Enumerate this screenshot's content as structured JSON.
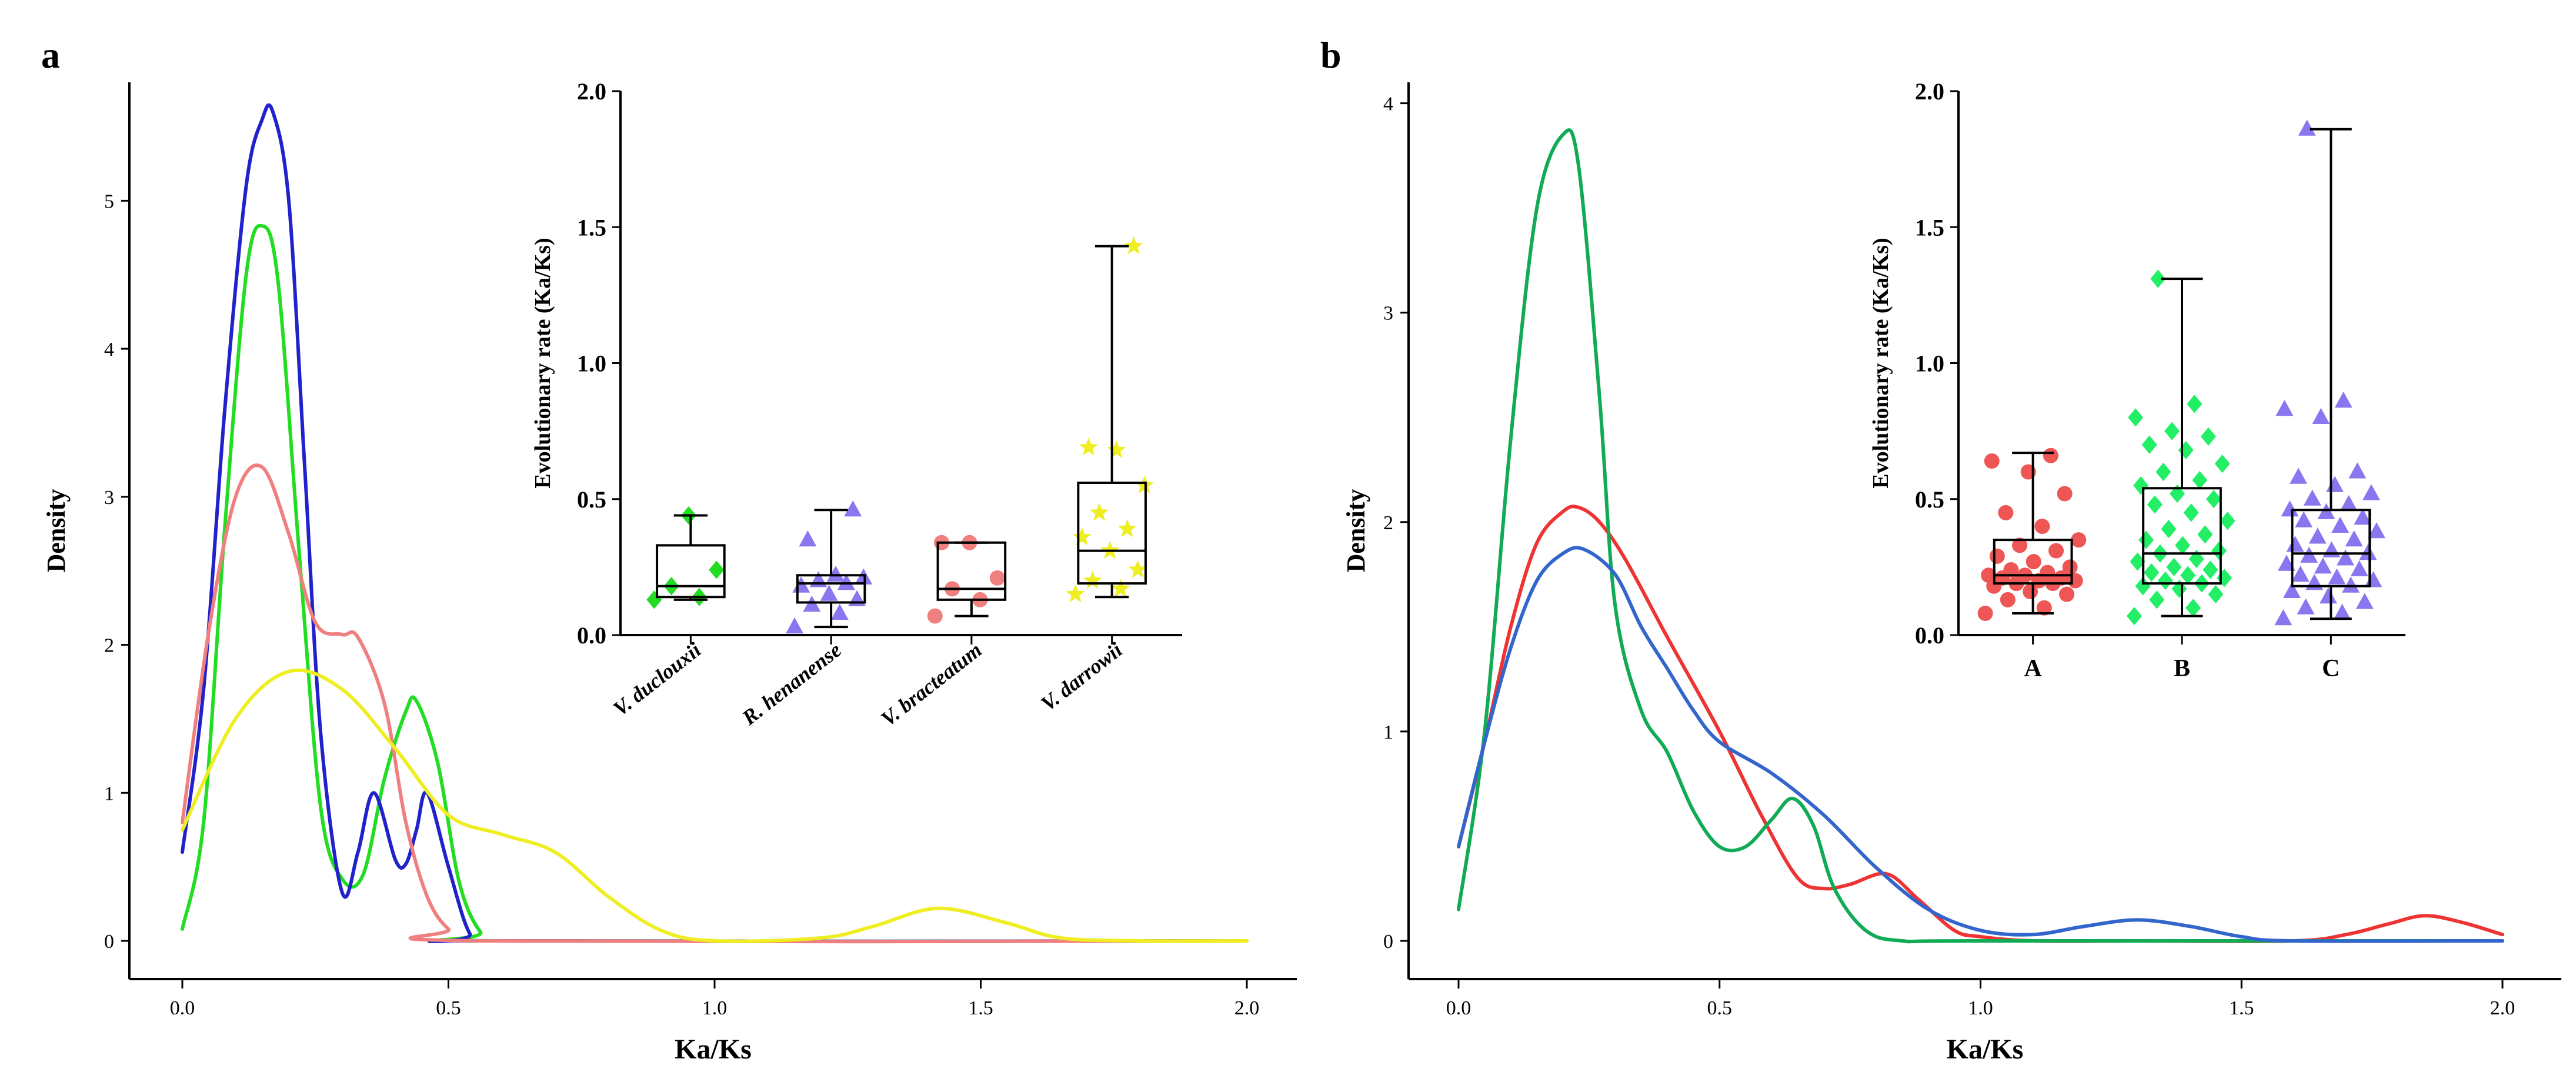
{
  "figure": {
    "panels": [
      {
        "label": "a"
      },
      {
        "label": "b"
      }
    ]
  },
  "chart_data": [
    {
      "panel": "a",
      "type": "line",
      "subtype": "density",
      "title": "",
      "xlabel": "Ka/Ks",
      "ylabel": "Density",
      "xlim": [
        0,
        2
      ],
      "ylim": [
        0,
        5.8
      ],
      "xticks": [
        0.0,
        0.5,
        1.0,
        1.5,
        2.0
      ],
      "xtick_labels": [
        "0.0",
        "0.5",
        "1.0",
        "1.5",
        "2.0"
      ],
      "yticks": [
        0,
        1,
        2,
        3,
        4,
        5
      ],
      "ytick_labels": [
        "0",
        "1",
        "2",
        "3",
        "4",
        "5"
      ],
      "legend": "none",
      "series": [
        {
          "name": "V. duclouxii",
          "color": "#22dd22",
          "x": [
            0,
            0.04,
            0.08,
            0.12,
            0.15,
            0.18,
            0.22,
            0.26,
            0.3,
            0.34,
            0.38,
            0.42,
            0.44,
            0.48,
            0.52,
            0.56,
            0.6,
            2.0
          ],
          "y": [
            0.08,
            0.8,
            2.8,
            4.5,
            4.83,
            4.45,
            2.6,
            0.9,
            0.42,
            0.45,
            1.1,
            1.55,
            1.62,
            1.2,
            0.4,
            0.06,
            0.0,
            0.0
          ]
        },
        {
          "name": "R. henanense",
          "color": "#2222cc",
          "x": [
            0,
            0.04,
            0.08,
            0.12,
            0.15,
            0.17,
            0.2,
            0.23,
            0.26,
            0.3,
            0.33,
            0.36,
            0.4,
            0.42,
            0.44,
            0.46,
            0.5,
            0.54,
            0.58,
            2.0
          ],
          "y": [
            0.6,
            1.7,
            3.6,
            5.1,
            5.55,
            5.6,
            5.0,
            3.2,
            1.4,
            0.33,
            0.6,
            1.0,
            0.55,
            0.52,
            0.75,
            1.0,
            0.5,
            0.05,
            0.0,
            0.0
          ]
        },
        {
          "name": "V. bracteatum",
          "color": "#f08080",
          "x": [
            0,
            0.05,
            0.1,
            0.15,
            0.2,
            0.25,
            0.3,
            0.33,
            0.38,
            0.42,
            0.46,
            0.5,
            0.55,
            2.0
          ],
          "y": [
            0.8,
            2.1,
            3.0,
            3.2,
            2.75,
            2.15,
            2.07,
            2.05,
            1.6,
            0.8,
            0.3,
            0.08,
            0.0,
            0.0
          ]
        },
        {
          "name": "V. darrowii",
          "color": "#eeee22",
          "x": [
            0,
            0.1,
            0.2,
            0.3,
            0.4,
            0.5,
            0.6,
            0.7,
            0.8,
            0.9,
            1.0,
            1.2,
            1.3,
            1.42,
            1.55,
            1.65,
            1.8,
            2.0
          ],
          "y": [
            0.75,
            1.5,
            1.82,
            1.7,
            1.3,
            0.85,
            0.72,
            0.6,
            0.3,
            0.07,
            0.0,
            0.02,
            0.1,
            0.22,
            0.12,
            0.02,
            0.0,
            0.0
          ]
        }
      ],
      "inset": {
        "type": "box",
        "title": "",
        "xlabel": "",
        "ylabel": "Evolutionary rate (Ka/Ks)",
        "ylim": [
          0,
          2.0
        ],
        "yticks": [
          0.0,
          0.5,
          1.0,
          1.5,
          2.0
        ],
        "ytick_labels": [
          "0.0",
          "0.5",
          "1.0",
          "1.5",
          "2.0"
        ],
        "categories": [
          "V. duclouxii",
          "R. henanense",
          "V. bracteatum",
          "V. darrowii"
        ],
        "boxes": [
          {
            "name": "V. duclouxii",
            "color": "#22dd22",
            "marker": "diamond",
            "min": 0.13,
            "q1": 0.14,
            "median": 0.18,
            "q3": 0.33,
            "max": 0.44,
            "points": [
              0.13,
              0.14,
              0.18,
              0.24,
              0.44
            ]
          },
          {
            "name": "R. henanense",
            "color": "#8877ee",
            "marker": "triangle",
            "min": 0.03,
            "q1": 0.12,
            "median": 0.19,
            "q3": 0.22,
            "max": 0.46,
            "points": [
              0.03,
              0.08,
              0.11,
              0.13,
              0.15,
              0.18,
              0.19,
              0.2,
              0.21,
              0.22,
              0.35,
              0.46
            ]
          },
          {
            "name": "V. bracteatum",
            "color": "#f08080",
            "marker": "circle",
            "min": 0.07,
            "q1": 0.13,
            "median": 0.17,
            "q3": 0.34,
            "max": 0.34,
            "points": [
              0.07,
              0.13,
              0.17,
              0.21,
              0.34,
              0.34
            ]
          },
          {
            "name": "V. darrowii",
            "color": "#eeee22",
            "marker": "star",
            "min": 0.14,
            "q1": 0.19,
            "median": 0.31,
            "q3": 0.56,
            "max": 1.43,
            "points": [
              0.15,
              0.17,
              0.2,
              0.24,
              0.31,
              0.36,
              0.39,
              0.45,
              0.55,
              0.68,
              0.69,
              1.43
            ]
          }
        ]
      }
    },
    {
      "panel": "b",
      "type": "line",
      "subtype": "density",
      "title": "",
      "xlabel": "Ka/Ks",
      "ylabel": "Density",
      "xlim": [
        0,
        2
      ],
      "ylim": [
        0,
        4.1
      ],
      "xticks": [
        0.0,
        0.5,
        1.0,
        1.5,
        2.0
      ],
      "xtick_labels": [
        "0.0",
        "0.5",
        "1.0",
        "1.5",
        "2.0"
      ],
      "yticks": [
        0,
        1,
        2,
        3,
        4
      ],
      "ytick_labels": [
        "0",
        "1",
        "2",
        "3",
        "4"
      ],
      "legend": "none",
      "series": [
        {
          "name": "A",
          "color": "#ee3333",
          "x": [
            0,
            0.05,
            0.1,
            0.15,
            0.2,
            0.23,
            0.27,
            0.32,
            0.4,
            0.5,
            0.58,
            0.65,
            0.7,
            0.75,
            0.82,
            0.88,
            0.95,
            1.0,
            1.1,
            1.3,
            1.6,
            1.7,
            1.78,
            1.85,
            1.92,
            2.0
          ],
          "y": [
            0.45,
            0.95,
            1.5,
            1.9,
            2.05,
            2.07,
            2.0,
            1.82,
            1.45,
            1.0,
            0.6,
            0.3,
            0.25,
            0.27,
            0.32,
            0.2,
            0.05,
            0.02,
            0.0,
            0.0,
            0.0,
            0.03,
            0.08,
            0.12,
            0.09,
            0.03
          ]
        },
        {
          "name": "B",
          "color": "#11aa55",
          "x": [
            0,
            0.05,
            0.1,
            0.15,
            0.2,
            0.23,
            0.27,
            0.3,
            0.35,
            0.4,
            0.45,
            0.5,
            0.55,
            0.6,
            0.64,
            0.68,
            0.72,
            0.78,
            0.85,
            1.0,
            2.0
          ],
          "y": [
            0.15,
            1.0,
            2.4,
            3.5,
            3.85,
            3.7,
            2.6,
            1.6,
            1.1,
            0.9,
            0.62,
            0.45,
            0.45,
            0.58,
            0.68,
            0.55,
            0.25,
            0.05,
            0.0,
            0.0,
            0.0
          ]
        },
        {
          "name": "C",
          "color": "#3366cc",
          "x": [
            0,
            0.05,
            0.1,
            0.15,
            0.2,
            0.24,
            0.3,
            0.35,
            0.4,
            0.45,
            0.5,
            0.6,
            0.7,
            0.8,
            0.9,
            1.0,
            1.1,
            1.2,
            1.3,
            1.4,
            1.5,
            1.6,
            2.0
          ],
          "y": [
            0.45,
            0.95,
            1.4,
            1.72,
            1.85,
            1.87,
            1.75,
            1.5,
            1.3,
            1.1,
            0.95,
            0.8,
            0.6,
            0.35,
            0.15,
            0.05,
            0.03,
            0.07,
            0.1,
            0.07,
            0.02,
            0.0,
            0.0
          ]
        }
      ],
      "inset": {
        "type": "box",
        "title": "",
        "xlabel": "",
        "ylabel": "Evolutionary rate (Ka/Ks)",
        "ylim": [
          0,
          2.0
        ],
        "yticks": [
          0.0,
          0.5,
          1.0,
          1.5,
          2.0
        ],
        "ytick_labels": [
          "0.0",
          "0.5",
          "1.0",
          "1.5",
          "2.0"
        ],
        "categories": [
          "A",
          "B",
          "C"
        ],
        "boxes": [
          {
            "name": "A",
            "color": "#ee5555",
            "marker": "circle",
            "min": 0.08,
            "q1": 0.19,
            "median": 0.22,
            "q3": 0.35,
            "max": 0.67,
            "points": [
              0.08,
              0.1,
              0.13,
              0.15,
              0.16,
              0.18,
              0.19,
              0.19,
              0.2,
              0.2,
              0.21,
              0.21,
              0.22,
              0.22,
              0.23,
              0.24,
              0.25,
              0.27,
              0.29,
              0.31,
              0.33,
              0.35,
              0.4,
              0.45,
              0.52,
              0.6,
              0.64,
              0.66
            ]
          },
          {
            "name": "B",
            "color": "#22ee66",
            "marker": "diamond",
            "min": 0.07,
            "q1": 0.19,
            "median": 0.3,
            "q3": 0.54,
            "max": 1.31,
            "points": [
              0.07,
              0.1,
              0.13,
              0.15,
              0.17,
              0.18,
              0.19,
              0.2,
              0.21,
              0.22,
              0.23,
              0.24,
              0.25,
              0.27,
              0.28,
              0.3,
              0.31,
              0.33,
              0.35,
              0.37,
              0.39,
              0.42,
              0.45,
              0.48,
              0.5,
              0.52,
              0.55,
              0.57,
              0.6,
              0.63,
              0.68,
              0.7,
              0.73,
              0.75,
              0.8,
              0.85,
              1.31
            ]
          },
          {
            "name": "C",
            "color": "#8877ee",
            "marker": "triangle",
            "min": 0.06,
            "q1": 0.18,
            "median": 0.3,
            "q3": 0.46,
            "max": 1.86,
            "points": [
              0.06,
              0.08,
              0.1,
              0.12,
              0.14,
              0.16,
              0.18,
              0.19,
              0.2,
              0.21,
              0.22,
              0.24,
              0.25,
              0.26,
              0.28,
              0.29,
              0.3,
              0.31,
              0.33,
              0.35,
              0.36,
              0.38,
              0.4,
              0.42,
              0.43,
              0.45,
              0.46,
              0.48,
              0.5,
              0.52,
              0.55,
              0.58,
              0.6,
              0.8,
              0.83,
              0.86,
              1.86
            ]
          }
        ]
      }
    }
  ]
}
